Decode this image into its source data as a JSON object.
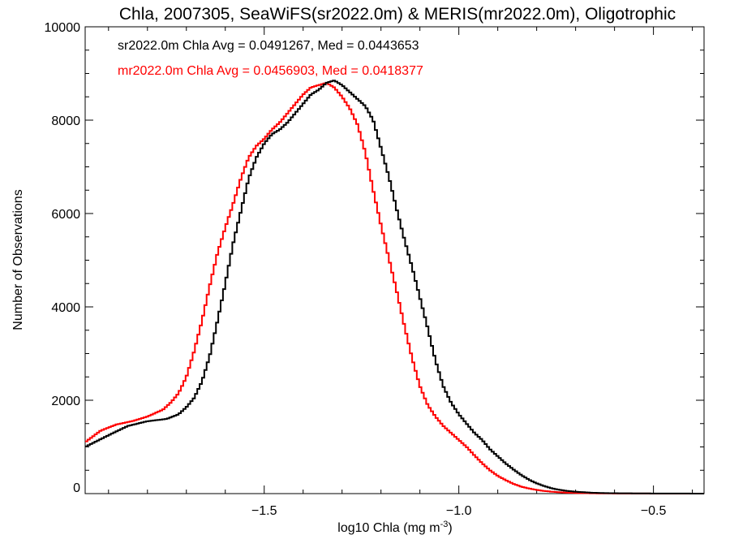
{
  "chart_data": {
    "type": "line",
    "title": "Chla, 2007305, SeaWiFS(sr2022.0m) & MERIS(mr2022.0m), Oligotrophic",
    "xlabel": "log10 Chla (mg m",
    "xlabel_sup": "-3",
    "xlabel_end": ")",
    "ylabel": "Number of Observations",
    "xlim": [
      -1.96,
      -0.37
    ],
    "ylim": [
      0,
      10000
    ],
    "x_ticks": [
      -1.5,
      -1.0,
      -0.5
    ],
    "x_tick_labels": [
      "−1.5",
      "−1.0",
      "−0.5"
    ],
    "y_ticks": [
      0,
      2000,
      4000,
      6000,
      8000,
      10000
    ],
    "y_tick_labels": [
      "0",
      "2000",
      "4000",
      "6000",
      "8000",
      "10000"
    ],
    "grid": false,
    "step": true,
    "annotations": [
      {
        "text": "sr2022.0m Chla Avg = 0.0491267, Med = 0.0443653",
        "color": "#000000"
      },
      {
        "text": "mr2022.0m Chla Avg = 0.0456903, Med = 0.0418377",
        "color": "#ff0000"
      }
    ],
    "series": [
      {
        "name": "sr2022.0m",
        "color": "#000000",
        "x": [
          -1.96,
          -1.9,
          -1.85,
          -1.8,
          -1.75,
          -1.72,
          -1.7,
          -1.68,
          -1.66,
          -1.64,
          -1.62,
          -1.6,
          -1.58,
          -1.56,
          -1.54,
          -1.52,
          -1.5,
          -1.48,
          -1.46,
          -1.44,
          -1.42,
          -1.4,
          -1.38,
          -1.36,
          -1.34,
          -1.32,
          -1.3,
          -1.28,
          -1.26,
          -1.24,
          -1.22,
          -1.2,
          -1.18,
          -1.16,
          -1.14,
          -1.12,
          -1.1,
          -1.08,
          -1.06,
          -1.04,
          -1.02,
          -1.0,
          -0.98,
          -0.96,
          -0.94,
          -0.92,
          -0.9,
          -0.88,
          -0.86,
          -0.84,
          -0.82,
          -0.8,
          -0.78,
          -0.76,
          -0.74,
          -0.72,
          -0.7,
          -0.68,
          -0.66,
          -0.64,
          -0.62,
          -0.6,
          -0.55,
          -0.5,
          -0.45,
          -0.4,
          -0.37
        ],
        "y": [
          1000,
          1250,
          1450,
          1550,
          1600,
          1700,
          1850,
          2050,
          2400,
          2950,
          3700,
          4500,
          5350,
          6050,
          6750,
          7200,
          7500,
          7700,
          7800,
          7950,
          8150,
          8350,
          8550,
          8650,
          8800,
          8850,
          8750,
          8600,
          8450,
          8300,
          8000,
          7400,
          6800,
          6100,
          5450,
          4850,
          4200,
          3550,
          2850,
          2300,
          1950,
          1700,
          1500,
          1300,
          1150,
          950,
          800,
          650,
          520,
          400,
          300,
          220,
          160,
          110,
          80,
          55,
          40,
          30,
          20,
          14,
          10,
          8,
          5,
          3,
          2,
          1,
          0
        ]
      },
      {
        "name": "mr2022.0m",
        "color": "#ff0000",
        "x": [
          -1.96,
          -1.92,
          -1.88,
          -1.84,
          -1.8,
          -1.76,
          -1.74,
          -1.72,
          -1.7,
          -1.68,
          -1.66,
          -1.64,
          -1.62,
          -1.6,
          -1.58,
          -1.56,
          -1.54,
          -1.52,
          -1.5,
          -1.48,
          -1.46,
          -1.44,
          -1.42,
          -1.4,
          -1.38,
          -1.36,
          -1.34,
          -1.32,
          -1.3,
          -1.28,
          -1.26,
          -1.24,
          -1.22,
          -1.2,
          -1.18,
          -1.16,
          -1.14,
          -1.12,
          -1.1,
          -1.08,
          -1.06,
          -1.04,
          -1.02,
          -1.0,
          -0.98,
          -0.96,
          -0.94,
          -0.92,
          -0.9,
          -0.88,
          -0.86,
          -0.84,
          -0.82,
          -0.8,
          -0.78,
          -0.76,
          -0.74,
          -0.72,
          -0.7,
          -0.68,
          -0.66,
          -0.64,
          -0.62,
          -0.6,
          -0.55,
          -0.5,
          -0.45,
          -0.4,
          -0.37
        ],
        "y": [
          1100,
          1350,
          1480,
          1550,
          1650,
          1800,
          1950,
          2150,
          2500,
          3050,
          3700,
          4450,
          5150,
          5700,
          6200,
          6750,
          7200,
          7450,
          7600,
          7800,
          7950,
          8150,
          8350,
          8550,
          8700,
          8750,
          8800,
          8700,
          8500,
          8250,
          7900,
          7300,
          6500,
          5750,
          5050,
          4350,
          3600,
          2900,
          2300,
          1900,
          1650,
          1450,
          1300,
          1150,
          1000,
          820,
          650,
          500,
          380,
          290,
          210,
          150,
          110,
          80,
          55,
          40,
          28,
          20,
          14,
          10,
          7,
          5,
          4,
          3,
          2,
          1,
          0,
          0,
          0
        ]
      }
    ]
  }
}
